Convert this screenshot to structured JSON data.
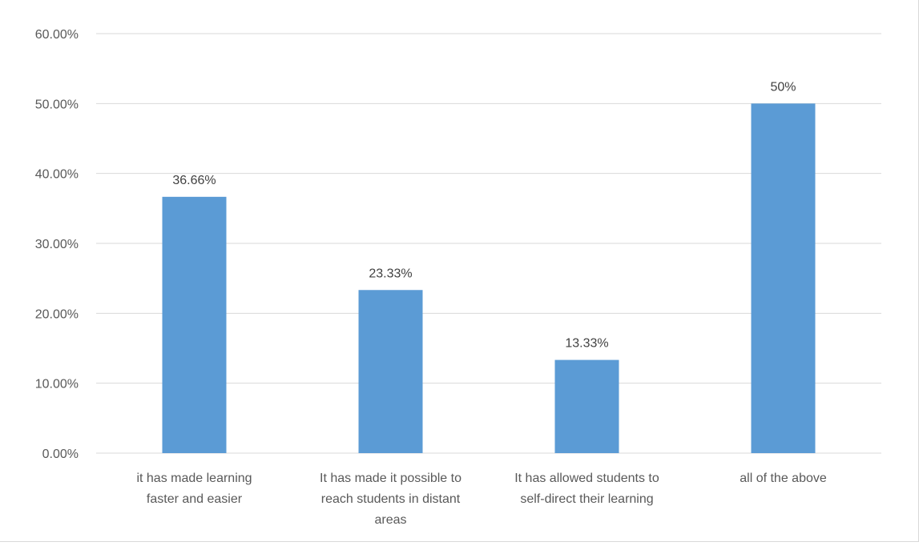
{
  "chart_data": {
    "type": "bar",
    "categories": [
      [
        "it has made learning",
        "faster and easier"
      ],
      [
        "It has made it possible to",
        "reach students in distant",
        "areas"
      ],
      [
        "It has allowed students to",
        "self-direct their learning"
      ],
      [
        "all of the above"
      ]
    ],
    "values": [
      36.66,
      23.33,
      13.33,
      50
    ],
    "data_labels": [
      "36.66%",
      "23.33%",
      "13.33%",
      "50%"
    ],
    "title": "",
    "xlabel": "",
    "ylabel": "",
    "ylim": [
      0,
      60
    ],
    "yticks": [
      0,
      10,
      20,
      30,
      40,
      50,
      60
    ],
    "ytick_labels": [
      "0.00%",
      "10.00%",
      "20.00%",
      "30.00%",
      "40.00%",
      "50.00%",
      "60.00%"
    ],
    "grid": true,
    "legend": "none",
    "bar_color": "#5b9bd5",
    "grid_color": "#d9d9d9"
  }
}
